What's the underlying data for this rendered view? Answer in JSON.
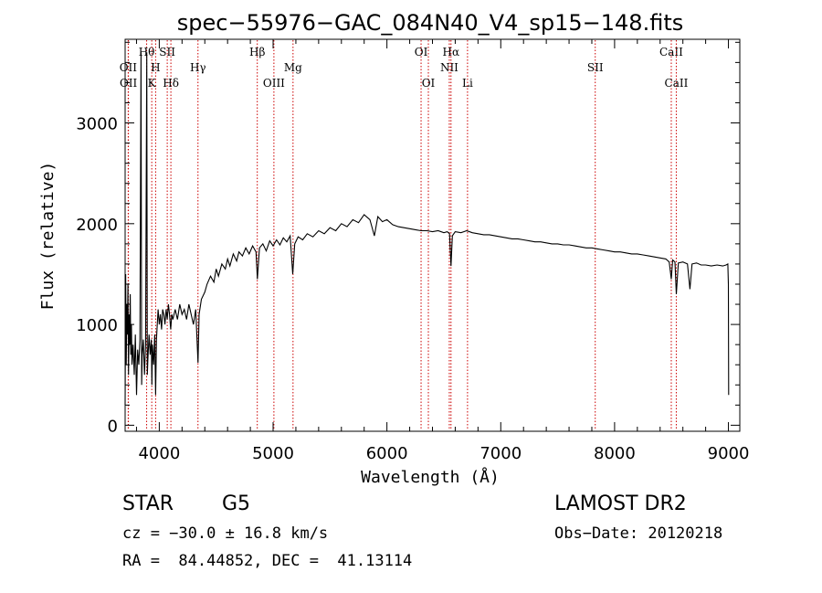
{
  "chart_data": {
    "type": "line",
    "title": "spec−55976−GAC_084N40_V4_sp15−148.fits",
    "xlabel": "Wavelength (Å)",
    "ylabel": "Flux (relative)",
    "xlim": [
      3700,
      9100
    ],
    "ylim": [
      -60,
      3830
    ],
    "x_ticks": [
      4000,
      5000,
      6000,
      7000,
      8000,
      9000
    ],
    "y_ticks": [
      0,
      1000,
      2000,
      3000
    ],
    "series": [
      {
        "points": [
          [
            3700,
            200
          ],
          [
            3705,
            1500
          ],
          [
            3710,
            600
          ],
          [
            3715,
            1200
          ],
          [
            3720,
            900
          ],
          [
            3725,
            1400
          ],
          [
            3730,
            500
          ],
          [
            3735,
            1100
          ],
          [
            3740,
            800
          ],
          [
            3745,
            1300
          ],
          [
            3750,
            700
          ],
          [
            3755,
            1000
          ],
          [
            3760,
            600
          ],
          [
            3770,
            800
          ],
          [
            3780,
            500
          ],
          [
            3790,
            900
          ],
          [
            3800,
            300
          ],
          [
            3810,
            750
          ],
          [
            3820,
            600
          ],
          [
            3830,
            850
          ],
          [
            3840,
            3700
          ],
          [
            3845,
            400
          ],
          [
            3850,
            700
          ],
          [
            3860,
            850
          ],
          [
            3870,
            500
          ],
          [
            3880,
            800
          ],
          [
            3890,
            3700
          ],
          [
            3895,
            500
          ],
          [
            3900,
            650
          ],
          [
            3910,
            900
          ],
          [
            3920,
            700
          ],
          [
            3930,
            850
          ],
          [
            3935,
            400
          ],
          [
            3940,
            800
          ],
          [
            3950,
            600
          ],
          [
            3960,
            900
          ],
          [
            3968,
            300
          ],
          [
            3975,
            850
          ],
          [
            3990,
            1150
          ],
          [
            4000,
            1000
          ],
          [
            4010,
            1100
          ],
          [
            4020,
            950
          ],
          [
            4030,
            1150
          ],
          [
            4040,
            1100
          ],
          [
            4050,
            1000
          ],
          [
            4060,
            1150
          ],
          [
            4070,
            1050
          ],
          [
            4080,
            1200
          ],
          [
            4090,
            1100
          ],
          [
            4100,
            950
          ],
          [
            4110,
            1100
          ],
          [
            4120,
            1050
          ],
          [
            4140,
            1150
          ],
          [
            4160,
            1050
          ],
          [
            4180,
            1200
          ],
          [
            4200,
            1100
          ],
          [
            4220,
            1150
          ],
          [
            4240,
            1050
          ],
          [
            4260,
            1200
          ],
          [
            4280,
            1100
          ],
          [
            4300,
            1000
          ],
          [
            4320,
            1150
          ],
          [
            4340,
            620
          ],
          [
            4350,
            1100
          ],
          [
            4370,
            1250
          ],
          [
            4400,
            1320
          ],
          [
            4420,
            1400
          ],
          [
            4450,
            1480
          ],
          [
            4480,
            1420
          ],
          [
            4500,
            1550
          ],
          [
            4520,
            1480
          ],
          [
            4550,
            1600
          ],
          [
            4580,
            1550
          ],
          [
            4600,
            1650
          ],
          [
            4620,
            1580
          ],
          [
            4650,
            1700
          ],
          [
            4680,
            1630
          ],
          [
            4700,
            1720
          ],
          [
            4730,
            1680
          ],
          [
            4760,
            1760
          ],
          [
            4790,
            1700
          ],
          [
            4820,
            1780
          ],
          [
            4850,
            1720
          ],
          [
            4862,
            1450
          ],
          [
            4880,
            1760
          ],
          [
            4910,
            1800
          ],
          [
            4940,
            1730
          ],
          [
            4970,
            1830
          ],
          [
            5000,
            1780
          ],
          [
            5030,
            1840
          ],
          [
            5060,
            1790
          ],
          [
            5090,
            1860
          ],
          [
            5120,
            1820
          ],
          [
            5150,
            1880
          ],
          [
            5172,
            1500
          ],
          [
            5190,
            1800
          ],
          [
            5220,
            1870
          ],
          [
            5260,
            1840
          ],
          [
            5300,
            1900
          ],
          [
            5350,
            1870
          ],
          [
            5400,
            1930
          ],
          [
            5450,
            1900
          ],
          [
            5500,
            1960
          ],
          [
            5550,
            1930
          ],
          [
            5600,
            2000
          ],
          [
            5650,
            1970
          ],
          [
            5700,
            2040
          ],
          [
            5750,
            2010
          ],
          [
            5800,
            2090
          ],
          [
            5850,
            2040
          ],
          [
            5890,
            1880
          ],
          [
            5920,
            2070
          ],
          [
            5960,
            2020
          ],
          [
            6000,
            2040
          ],
          [
            6050,
            1990
          ],
          [
            6100,
            1970
          ],
          [
            6150,
            1960
          ],
          [
            6200,
            1950
          ],
          [
            6250,
            1940
          ],
          [
            6300,
            1930
          ],
          [
            6350,
            1930
          ],
          [
            6400,
            1920
          ],
          [
            6450,
            1930
          ],
          [
            6500,
            1910
          ],
          [
            6530,
            1920
          ],
          [
            6550,
            1900
          ],
          [
            6563,
            1580
          ],
          [
            6575,
            1880
          ],
          [
            6600,
            1920
          ],
          [
            6650,
            1910
          ],
          [
            6700,
            1930
          ],
          [
            6750,
            1910
          ],
          [
            6800,
            1900
          ],
          [
            6850,
            1890
          ],
          [
            6900,
            1890
          ],
          [
            6950,
            1880
          ],
          [
            7000,
            1870
          ],
          [
            7050,
            1860
          ],
          [
            7100,
            1850
          ],
          [
            7150,
            1850
          ],
          [
            7200,
            1840
          ],
          [
            7250,
            1830
          ],
          [
            7300,
            1820
          ],
          [
            7350,
            1820
          ],
          [
            7400,
            1810
          ],
          [
            7450,
            1800
          ],
          [
            7500,
            1800
          ],
          [
            7550,
            1790
          ],
          [
            7600,
            1790
          ],
          [
            7650,
            1780
          ],
          [
            7700,
            1770
          ],
          [
            7750,
            1760
          ],
          [
            7800,
            1760
          ],
          [
            7850,
            1750
          ],
          [
            7900,
            1740
          ],
          [
            7950,
            1730
          ],
          [
            8000,
            1720
          ],
          [
            8050,
            1720
          ],
          [
            8100,
            1710
          ],
          [
            8150,
            1700
          ],
          [
            8200,
            1700
          ],
          [
            8250,
            1690
          ],
          [
            8300,
            1680
          ],
          [
            8350,
            1670
          ],
          [
            8400,
            1660
          ],
          [
            8450,
            1650
          ],
          [
            8480,
            1620
          ],
          [
            8498,
            1450
          ],
          [
            8510,
            1640
          ],
          [
            8530,
            1620
          ],
          [
            8542,
            1300
          ],
          [
            8560,
            1610
          ],
          [
            8600,
            1620
          ],
          [
            8640,
            1600
          ],
          [
            8662,
            1350
          ],
          [
            8680,
            1600
          ],
          [
            8720,
            1610
          ],
          [
            8760,
            1590
          ],
          [
            8800,
            1590
          ],
          [
            8850,
            1580
          ],
          [
            8900,
            1590
          ],
          [
            8950,
            1580
          ],
          [
            8980,
            1590
          ],
          [
            8995,
            1600
          ],
          [
            9000,
            1400
          ],
          [
            9002,
            300
          ]
        ]
      }
    ],
    "line_markers": [
      {
        "wavelength": 3727,
        "label": "OII",
        "row": 2
      },
      {
        "wavelength": 3729,
        "label": "OII",
        "row": 3
      },
      {
        "wavelength": 3889,
        "label": "Hθ",
        "row": 1
      },
      {
        "wavelength": 3934,
        "label": "K",
        "row": 3
      },
      {
        "wavelength": 3968,
        "label": "H",
        "row": 2
      },
      {
        "wavelength": 4070,
        "label": "SII",
        "row": 1
      },
      {
        "wavelength": 4102,
        "label": "Hδ",
        "row": 3
      },
      {
        "wavelength": 4340,
        "label": "Hγ",
        "row": 2
      },
      {
        "wavelength": 4861,
        "label": "Hβ",
        "row": 1
      },
      {
        "wavelength": 5007,
        "label": "OIII",
        "row": 3
      },
      {
        "wavelength": 5175,
        "label": "Mg",
        "row": 2
      },
      {
        "wavelength": 6300,
        "label": "OI",
        "row": 1
      },
      {
        "wavelength": 6364,
        "label": "OI",
        "row": 3
      },
      {
        "wavelength": 6548,
        "label": "NII",
        "row": 2
      },
      {
        "wavelength": 6563,
        "label": "Hα",
        "row": 1
      },
      {
        "wavelength": 6708,
        "label": "Li",
        "row": 3
      },
      {
        "wavelength": 7830,
        "label": "SII",
        "row": 2
      },
      {
        "wavelength": 8498,
        "label": "CaII",
        "row": 1
      },
      {
        "wavelength": 8542,
        "label": "CaII",
        "row": 3
      }
    ],
    "colors": {
      "spectrum": "#000000",
      "markers": "#cc0000"
    }
  },
  "info": {
    "object_class": "STAR",
    "subclass": "G5",
    "survey": "LAMOST DR2",
    "redshift": "cz = −30.0 ± 16.8 km/s",
    "obs_date": "Obs−Date: 20120218",
    "coords": "RA =  84.44852, DEC =  41.13114"
  }
}
